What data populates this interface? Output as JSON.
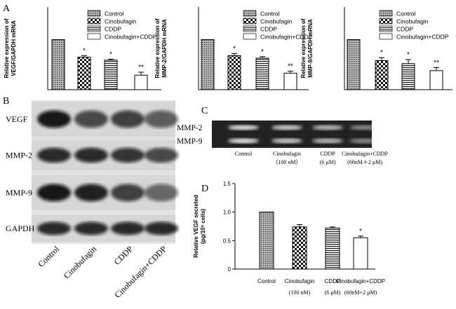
{
  "panels": {
    "a": "A",
    "b": "B",
    "c": "C",
    "d": "D"
  },
  "chart_data": [
    {
      "type": "bar",
      "ylabel": [
        "Relative expression of",
        "VEGF/GAPDH mRNA"
      ],
      "categories": [
        "Control",
        "Cinobufagin",
        "CDDP",
        "Cinobufagin+CDDP"
      ],
      "patterns": [
        "crosshatch",
        "checker",
        "stripes",
        "none"
      ],
      "values": [
        1,
        0.65,
        0.59,
        0.29
      ],
      "errors": [
        0,
        0.03,
        0.02,
        0.06
      ],
      "annotations": [
        null,
        "*",
        "*",
        "**"
      ],
      "ylim": [
        0,
        1.65
      ],
      "legend": true
    },
    {
      "type": "bar",
      "ylabel": [
        "Relative expression of",
        "MMP-2/GAPDH mRNA"
      ],
      "categories": [
        "Control",
        "Cinobufagin",
        "CDDP",
        "Cinobufagin+CDDP"
      ],
      "patterns": [
        "crosshatch",
        "checker",
        "stripes",
        "none"
      ],
      "values": [
        1,
        0.68,
        0.63,
        0.33
      ],
      "errors": [
        0,
        0.04,
        0.03,
        0.04
      ],
      "annotations": [
        null,
        "*",
        "*",
        "**"
      ],
      "ylim": [
        0,
        1.65
      ],
      "legend": true
    },
    {
      "type": "bar",
      "ylabel": [
        "Relative expression of",
        "MMP-9/GAPDH mRNA"
      ],
      "categories": [
        "Control",
        "Cinobufagin",
        "CDDP",
        "Cinobufagin+CDDP"
      ],
      "patterns": [
        "crosshatch",
        "checker",
        "stripes",
        "none"
      ],
      "values": [
        1,
        0.58,
        0.52,
        0.38
      ],
      "errors": [
        0,
        0.06,
        0.08,
        0.06
      ],
      "annotations": [
        null,
        "*",
        "*",
        "**"
      ],
      "ylim": [
        0,
        1.65
      ],
      "legend": true
    },
    {
      "type": "bar",
      "ylabel": [
        "Relative VEGF secreted",
        "(pg/10⁶ cells)"
      ],
      "categories": [
        "Control",
        "Cinobufagin",
        "CDDP",
        "Cinobufagin+CDDP"
      ],
      "category_notes": [
        null,
        "(100 nM)",
        "(6 μM)",
        "(60nM+2 μM)"
      ],
      "patterns": [
        "crosshatch",
        "checker",
        "stripes",
        "none"
      ],
      "values": [
        1,
        0.74,
        0.72,
        0.55
      ],
      "errors": [
        0,
        0.04,
        0.02,
        0.03
      ],
      "annotations": [
        null,
        null,
        null,
        "*"
      ],
      "ylim": [
        0,
        1.5
      ],
      "yticks": [
        0,
        0.5,
        {
          "value": 1,
          "label": "1.0"
        },
        1.5
      ],
      "legend": false
    }
  ],
  "blot_b": {
    "rows": [
      "VEGF",
      "MMP-2",
      "MMP-9",
      "GAPDH"
    ],
    "lanes": [
      "Control",
      "Cinobufagin",
      "CDDP",
      "Cinobufagin+CDDP"
    ]
  },
  "blot_c": {
    "rows": [
      "MMP-2",
      "MMP-9"
    ],
    "lanes": [
      "Control",
      "Cinobufagin",
      "CDDP",
      "Cinobufagin+CDDP"
    ],
    "lane_notes": [
      null,
      "（100 nM）",
      "(6 μM)",
      "(60nM＋2 μM)"
    ]
  }
}
